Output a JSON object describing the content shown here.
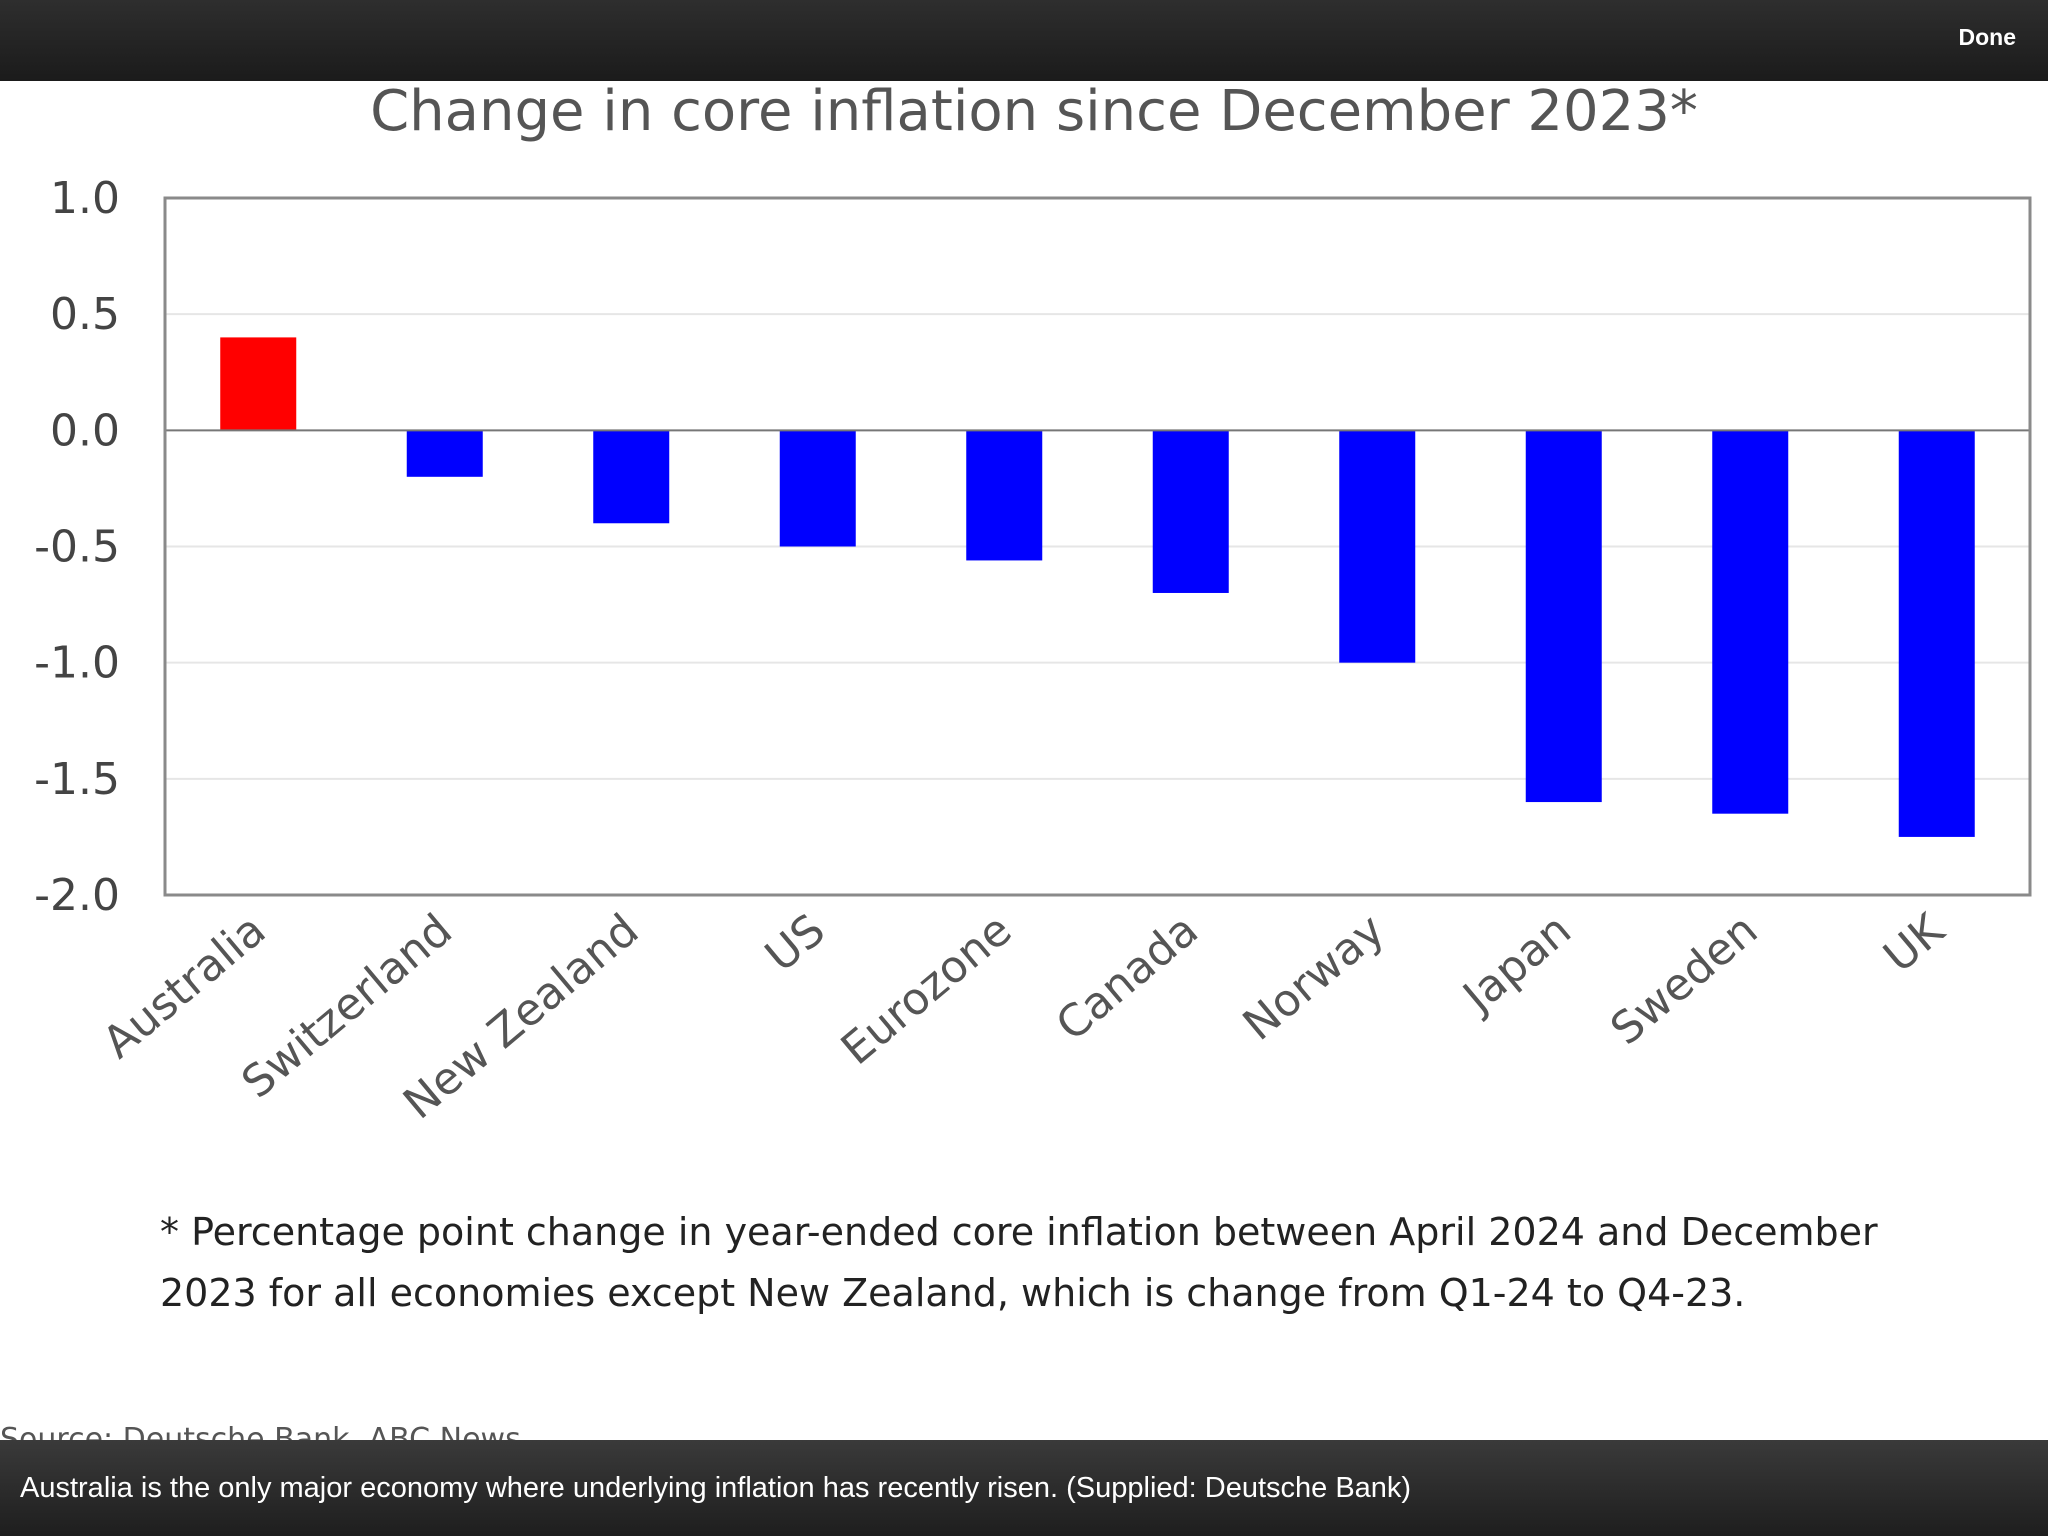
{
  "toolbar": {
    "done_label": "Done"
  },
  "chart_data": {
    "type": "bar",
    "title": "Change in core inflation since December 2023*",
    "categories": [
      "Australia",
      "Switzerland",
      "New Zealand",
      "US",
      "Eurozone",
      "Canada",
      "Norway",
      "Japan",
      "Sweden",
      "UK"
    ],
    "values": [
      0.4,
      -0.2,
      -0.4,
      -0.5,
      -0.56,
      -0.7,
      -1.0,
      -1.6,
      -1.65,
      -1.75
    ],
    "colors": [
      "#ff0000",
      "#0000ff",
      "#0000ff",
      "#0000ff",
      "#0000ff",
      "#0000ff",
      "#0000ff",
      "#0000ff",
      "#0000ff",
      "#0000ff"
    ],
    "ylim": [
      -2.0,
      1.0
    ],
    "yticks": [
      "1.0",
      "0.5",
      "0.0",
      "-0.5",
      "-1.0",
      "-1.5",
      "-2.0"
    ],
    "xlabel": "",
    "ylabel": "",
    "grid": true,
    "footnote": "* Percentage point change in year-ended core inflation between April 2024 and December 2023 for all economies except New Zealand, which is change from Q1-24 to Q4-23."
  },
  "source_peek": "Source: Deutsche Bank, ABC News",
  "caption": "Australia is the only major economy where underlying inflation has recently risen. (Supplied: Deutsche Bank)"
}
